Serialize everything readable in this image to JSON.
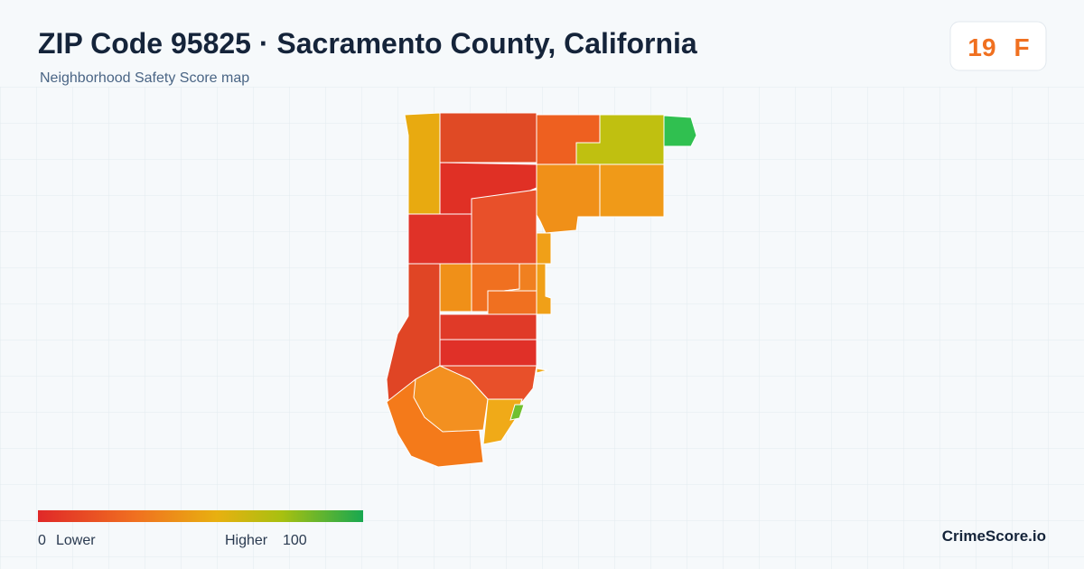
{
  "header": {
    "title": "ZIP Code 95825 · Sacramento County, California",
    "subtitle": "Neighborhood Safety Score map",
    "score": 19,
    "grade": "F"
  },
  "legend": {
    "min": 0,
    "min_label": "Lower",
    "max_label": "Higher",
    "max": 100
  },
  "brand": "CrimeScore.io"
}
